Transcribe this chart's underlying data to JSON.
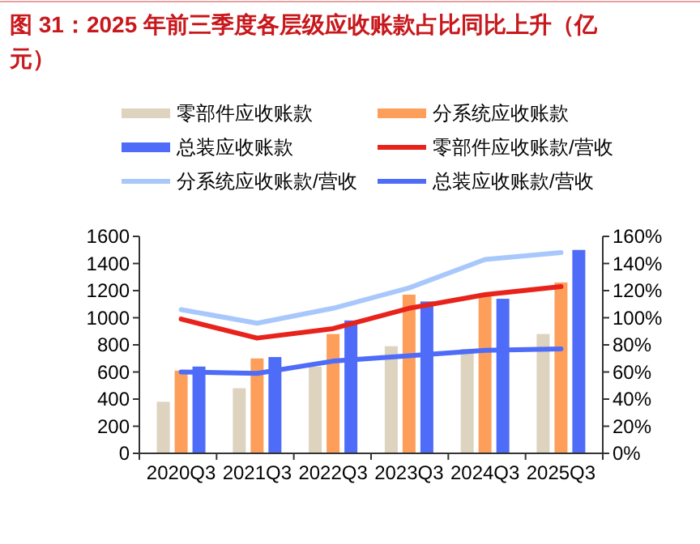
{
  "chart_data": {
    "type": "bar",
    "title": "图 31：2025 年前三季度各层级应收账款占比同比上升（亿元）",
    "categories": [
      "2020Q3",
      "2021Q3",
      "2022Q3",
      "2023Q3",
      "2024Q3",
      "2025Q3"
    ],
    "series": [
      {
        "name": "零部件应收账款",
        "color": "#ddd3bf",
        "values": [
          380,
          480,
          640,
          790,
          770,
          880
        ]
      },
      {
        "name": "分系统应收账款",
        "color": "#fd9f5b",
        "values": [
          610,
          700,
          880,
          1170,
          1180,
          1260
        ]
      },
      {
        "name": "总装应收账款",
        "color": "#4e6cf8",
        "values": [
          640,
          710,
          980,
          1120,
          1140,
          1500
        ]
      },
      {
        "name": "零部件应收账款/营收",
        "type": "line",
        "axis": "y2",
        "color": "#e8231c",
        "values": [
          99,
          85,
          92,
          107,
          117,
          123
        ]
      },
      {
        "name": "分系统应收账款/营收",
        "type": "line",
        "axis": "y2",
        "color": "#a8c8fc",
        "values": [
          106,
          96,
          107,
          122,
          143,
          148
        ]
      },
      {
        "name": "总装应收账款/营收",
        "type": "line",
        "axis": "y2",
        "color": "#4e6cf8",
        "values": [
          60,
          59,
          68,
          72,
          76,
          77
        ]
      }
    ],
    "ylim": [
      0,
      1600
    ],
    "yticks": [
      0,
      200,
      400,
      600,
      800,
      1000,
      1200,
      1400,
      1600
    ],
    "y2lim": [
      0,
      160
    ],
    "y2ticks": [
      {
        "value": 0,
        "label": "0%"
      },
      {
        "value": 20,
        "label": "20%"
      },
      {
        "value": 40,
        "label": "40%"
      },
      {
        "value": 60,
        "label": "60%"
      },
      {
        "value": 80,
        "label": "80%"
      },
      {
        "value": 100,
        "label": "100%"
      },
      {
        "value": 120,
        "label": "120%"
      },
      {
        "value": 140,
        "label": "140%"
      },
      {
        "value": 160,
        "label": "160%"
      }
    ],
    "legend": "top",
    "grid": false
  }
}
